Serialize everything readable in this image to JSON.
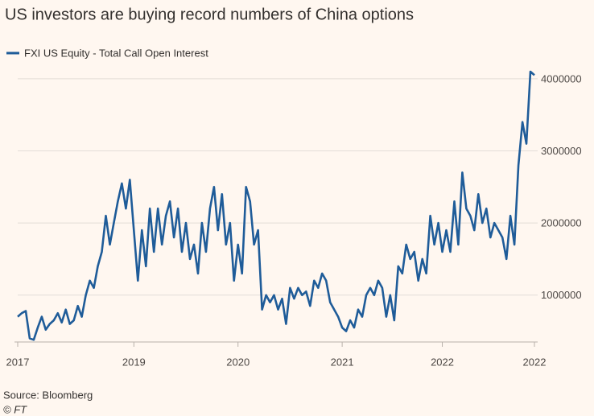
{
  "chart_data": {
    "type": "line",
    "title": "US investors are buying record numbers of China options",
    "source": "Source: Bloomberg",
    "credit": "© FT",
    "categories": [
      "2017",
      null,
      null,
      null,
      null,
      null,
      null,
      null,
      null,
      null,
      null,
      null,
      null,
      null,
      null,
      null,
      null,
      null,
      null,
      null,
      null,
      null,
      null,
      null,
      null,
      null,
      null,
      null,
      null,
      "2019",
      null,
      null,
      null,
      null,
      null,
      null,
      null,
      null,
      null,
      null,
      null,
      null,
      null,
      null,
      null,
      null,
      null,
      null,
      null,
      null,
      null,
      null,
      null,
      null,
      null,
      "2020",
      null,
      null,
      null,
      null,
      null,
      null,
      null,
      null,
      null,
      null,
      null,
      null,
      null,
      null,
      null,
      null,
      null,
      null,
      null,
      null,
      null,
      null,
      null,
      null,
      null,
      "2021",
      null,
      null,
      null,
      null,
      null,
      null,
      null,
      null,
      null,
      null,
      null,
      null,
      null,
      null,
      null,
      null,
      null,
      null,
      null,
      null,
      null,
      null,
      null,
      null,
      "2022",
      null,
      null,
      null,
      null,
      null,
      null,
      null,
      null,
      null,
      null,
      null,
      null,
      null,
      null,
      null,
      null,
      null,
      null,
      null,
      null,
      null,
      null,
      "2022"
    ],
    "series": [
      {
        "name": "FXI US Equity - Total Call Open Interest",
        "color": "#1f5c99",
        "values": [
          700000,
          750000,
          780000,
          400000,
          380000,
          550000,
          700000,
          520000,
          600000,
          650000,
          750000,
          620000,
          800000,
          600000,
          650000,
          850000,
          700000,
          1000000,
          1200000,
          1100000,
          1400000,
          1600000,
          2100000,
          1700000,
          2000000,
          2300000,
          2550000,
          2200000,
          2600000,
          1900000,
          1200000,
          1900000,
          1400000,
          2200000,
          1600000,
          2200000,
          1700000,
          2100000,
          2300000,
          1800000,
          2200000,
          1600000,
          2000000,
          1500000,
          1700000,
          1300000,
          2000000,
          1600000,
          2200000,
          2500000,
          1900000,
          2400000,
          1700000,
          2000000,
          1200000,
          1700000,
          1300000,
          2500000,
          2300000,
          1700000,
          1900000,
          800000,
          1000000,
          900000,
          1000000,
          800000,
          950000,
          600000,
          1100000,
          950000,
          1100000,
          1000000,
          1050000,
          850000,
          1200000,
          1100000,
          1300000,
          1200000,
          900000,
          800000,
          700000,
          550000,
          500000,
          650000,
          550000,
          800000,
          700000,
          1000000,
          1100000,
          1000000,
          1200000,
          1100000,
          700000,
          1000000,
          650000,
          1400000,
          1300000,
          1700000,
          1500000,
          1600000,
          1200000,
          1500000,
          1300000,
          2100000,
          1700000,
          2000000,
          1600000,
          1900000,
          1600000,
          2300000,
          1700000,
          2700000,
          2200000,
          2100000,
          1900000,
          2400000,
          2000000,
          2200000,
          1800000,
          2000000,
          1900000,
          1800000,
          1500000,
          2100000,
          1700000,
          2800000,
          3400000,
          3100000,
          4100000,
          4050000
        ]
      }
    ],
    "ylim": [
      350000,
      4200000
    ],
    "yticks": [
      1000000,
      2000000,
      3000000,
      4000000
    ],
    "grid": true
  }
}
